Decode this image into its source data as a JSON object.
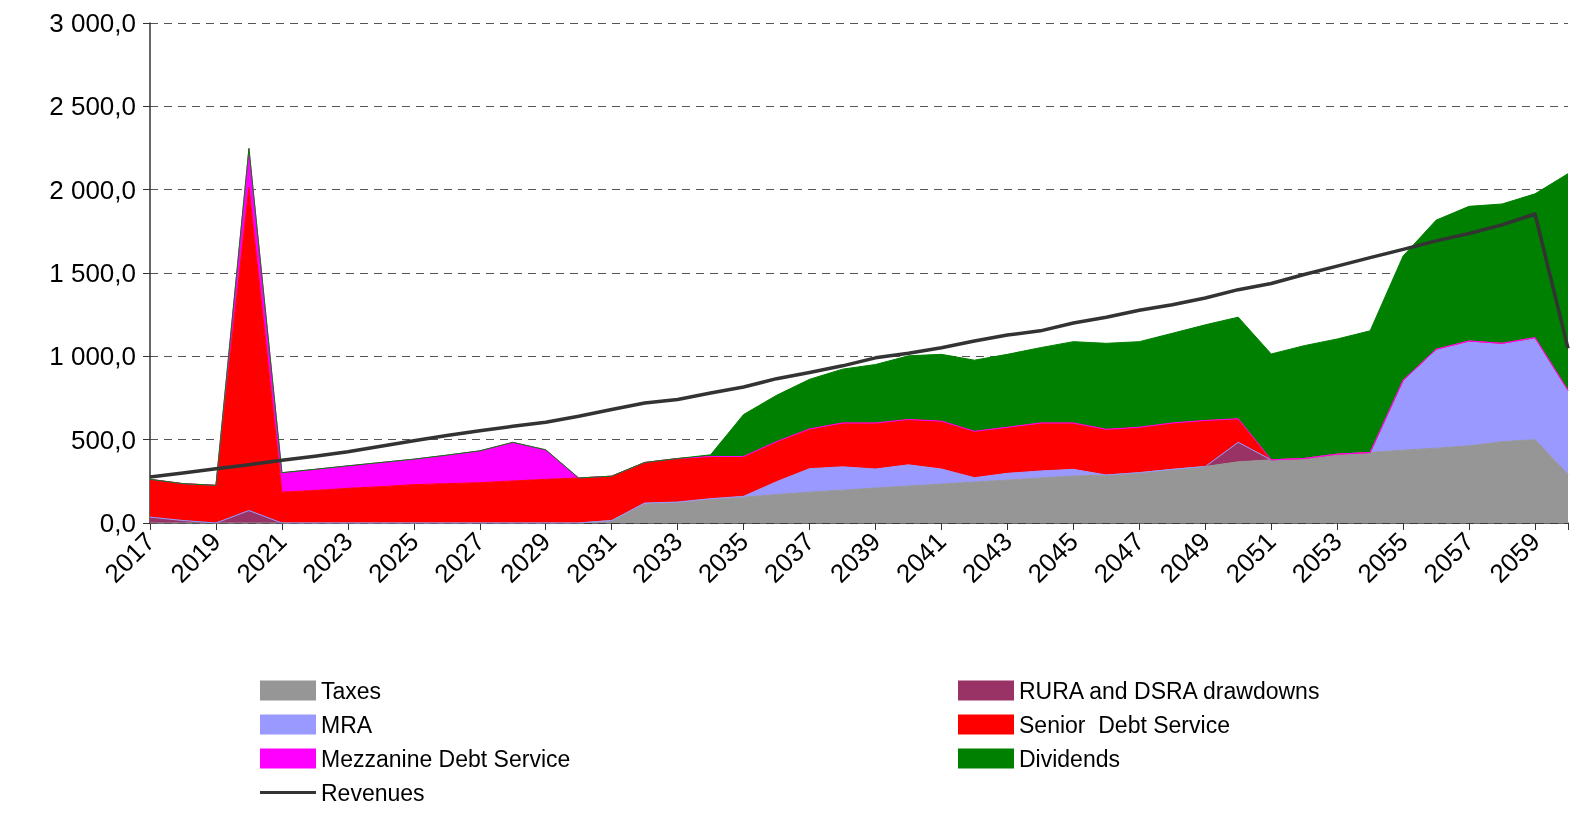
{
  "chart_data": {
    "type": "area",
    "stacked": true,
    "categories": [
      "2017",
      null,
      "2019",
      null,
      "2021",
      null,
      "2023",
      null,
      "2025",
      null,
      "2027",
      null,
      "2029",
      null,
      "2031",
      null,
      "2033",
      null,
      "2035",
      null,
      "2037",
      null,
      "2039",
      null,
      "2041",
      null,
      "2043",
      null,
      "2045",
      null,
      "2047",
      null,
      "2049",
      null,
      "2051",
      null,
      "2053",
      null,
      "2055",
      null,
      "2057",
      null,
      "2059",
      null
    ],
    "series": [
      {
        "name": "Taxes",
        "color": "#969696",
        "values": [
          0,
          0,
          0,
          0,
          0,
          0,
          0,
          0,
          0,
          0,
          0,
          0,
          0,
          0,
          15,
          115,
          121,
          141,
          155,
          171,
          185,
          197,
          210,
          222,
          234,
          246,
          258,
          270,
          282,
          288,
          302,
          322,
          339,
          367,
          379,
          387,
          413,
          423,
          437,
          449,
          463,
          488,
          500,
          292
        ]
      },
      {
        "name": "RURA and DSRA drawdowns",
        "color": "#993366",
        "values": [
          35,
          15,
          0,
          75,
          0,
          null,
          null,
          null,
          null,
          null,
          null,
          null,
          null,
          null,
          null,
          null,
          null,
          null,
          null,
          null,
          null,
          null,
          null,
          null,
          null,
          null,
          null,
          null,
          null,
          null,
          null,
          null,
          0,
          117,
          0,
          null,
          null,
          null,
          null,
          null,
          null,
          null,
          null,
          null
        ]
      },
      {
        "name": "MRA",
        "color": "#9999ff",
        "values": [
          0,
          0,
          0,
          0,
          0,
          0,
          0,
          0,
          0,
          0,
          0,
          0,
          0,
          0,
          0,
          5,
          5,
          5,
          5,
          77,
          141,
          140,
          114,
          127,
          90,
          26,
          40,
          42,
          40,
          0,
          0,
          0,
          0,
          0,
          0,
          0,
          0,
          0,
          419,
          593,
          629,
          590,
          612,
          504
        ]
      },
      {
        "name": "Senior  Debt Service",
        "color": "#ff0000",
        "values": [
          227,
          221,
          226,
          1940,
          185,
          195,
          208,
          218,
          230,
          236,
          242,
          252,
          262,
          270,
          266,
          243,
          261,
          253,
          239,
          240,
          238,
          263,
          276,
          272,
          287,
          278,
          276,
          288,
          278,
          274,
          272,
          278,
          276,
          141,
          0,
          0,
          0,
          0,
          0,
          0,
          0,
          0,
          0,
          0
        ]
      },
      {
        "name": "Mezzanine Debt Service",
        "color": "#ff00ff",
        "values": [
          0,
          0,
          0,
          232,
          117,
          127,
          135,
          145,
          153,
          171,
          191,
          232,
          177,
          0,
          0,
          0,
          0,
          0,
          0,
          0,
          0,
          0,
          0,
          0,
          0,
          0,
          0,
          0,
          0,
          0,
          0,
          0,
          0,
          0,
          0,
          0,
          0,
          0,
          0,
          0,
          0,
          0,
          0,
          0
        ]
      },
      {
        "name": "Dividends",
        "color": "#008000",
        "values": [
          0,
          0,
          0,
          0,
          0,
          0,
          0,
          0,
          0,
          0,
          0,
          0,
          0,
          0,
          0,
          0,
          0,
          10,
          252,
          278,
          298,
          323,
          351,
          382,
          401,
          427,
          438,
          452,
          488,
          516,
          514,
          538,
          574,
          610,
          635,
          677,
          691,
          730,
          746,
          775,
          808,
          836,
          863,
          1300
        ]
      },
      {
        "name": "Revenues",
        "type": "line",
        "color": "#333333",
        "values": [
          276,
          300,
          326,
          350,
          377,
          400,
          427,
          460,
          493,
          525,
          554,
          580,
          605,
          640,
          681,
          720,
          741,
          780,
          816,
          866,
          903,
          943,
          991,
          1018,
          1052,
          1092,
          1128,
          1153,
          1200,
          1235,
          1276,
          1310,
          1350,
          1400,
          1437,
          1491,
          1541,
          1592,
          1642,
          1693,
          1737,
          1789,
          1854,
          1048
        ]
      }
    ],
    "ylim": [
      0,
      3000
    ],
    "yticks": [
      {
        "value": 0,
        "label": "0,0"
      },
      {
        "value": 500,
        "label": "500,0"
      },
      {
        "value": 1000,
        "label": "1 000,0"
      },
      {
        "value": 1500,
        "label": "1 500,0"
      },
      {
        "value": 2000,
        "label": "2 000,0"
      },
      {
        "value": 2500,
        "label": "2 500,0"
      },
      {
        "value": 3000,
        "label": "3 000,0"
      }
    ],
    "grid": "y",
    "legend": "bottom"
  }
}
